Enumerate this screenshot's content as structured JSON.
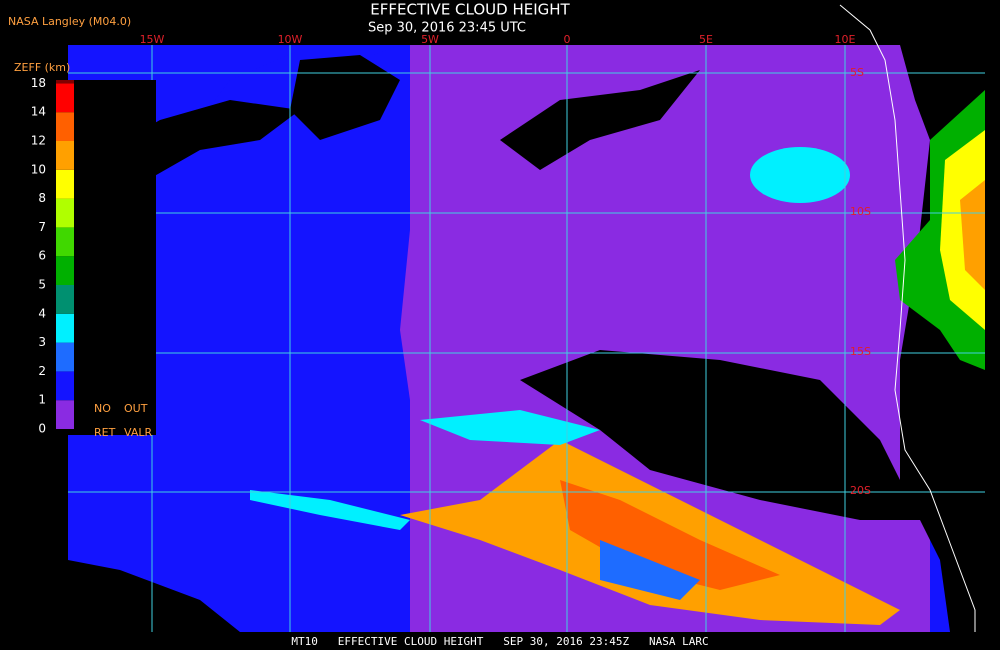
{
  "header": {
    "agency": "NASA Langley (M04.0)",
    "title": "EFFECTIVE CLOUD HEIGHT",
    "subtitle": "Sep 30, 2016 23:45 UTC"
  },
  "legend": {
    "title": "ZEFF (km)",
    "ticks": [
      "0",
      "1",
      "2",
      "3",
      "4",
      "5",
      "6",
      "7",
      "8",
      "10",
      "12",
      "14",
      "18"
    ],
    "colors": [
      "#8a2be2",
      "#1414ff",
      "#1e6cff",
      "#00f0ff",
      "#009070",
      "#00b000",
      "#40d800",
      "#b0ff00",
      "#ffff00",
      "#ffa000",
      "#ff6000",
      "#ff0000",
      "#800000"
    ],
    "notes": [
      "NO",
      "OUT",
      "RET",
      "VALR"
    ]
  },
  "grid": {
    "longitudes": [
      "15W",
      "10W",
      "5W",
      "0",
      "5E",
      "10E"
    ],
    "latitudes": [
      "5S",
      "10S",
      "15S",
      "20S"
    ]
  },
  "footer": "MT10   EFFECTIVE CLOUD HEIGHT   SEP 30, 2016 23:45Z   NASA LARC"
}
